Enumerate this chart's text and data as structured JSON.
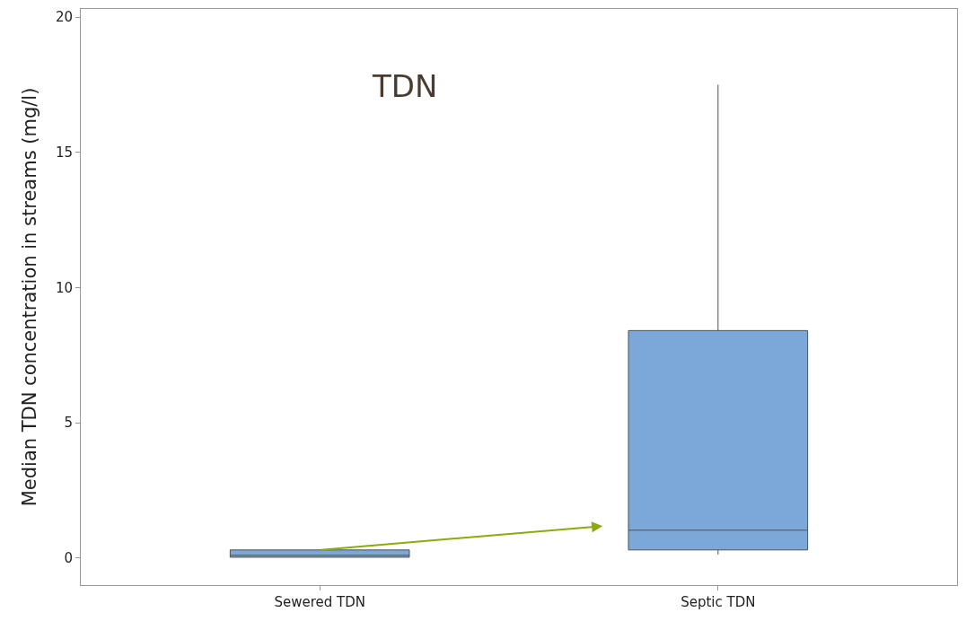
{
  "chart_data": {
    "type": "box",
    "title": "TDN",
    "ylabel": "Median TDN concentration in streams (mg/l)",
    "categories": [
      "Sewered TDN",
      "Septic TDN"
    ],
    "boxes": [
      {
        "low": 0.03,
        "q1": 0.03,
        "median": 0.1,
        "q3": 0.3,
        "high": 0.3
      },
      {
        "low": 0.13,
        "q1": 0.3,
        "median": 1.03,
        "q3": 8.41,
        "high": 17.5
      }
    ],
    "color": "#7ba7d9",
    "ylim": [
      -1,
      20.3
    ],
    "yticks": [
      0,
      5,
      10,
      15,
      20
    ],
    "legend": false
  }
}
